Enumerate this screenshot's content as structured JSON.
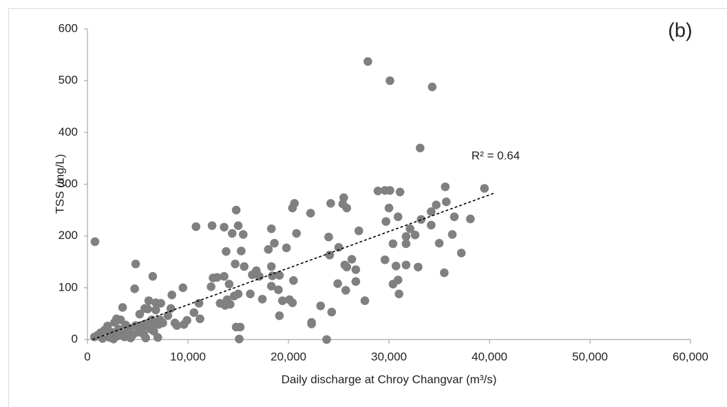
{
  "chart_data": {
    "type": "scatter",
    "title": "(b)",
    "xlabel": "Daily discharge at Chroy Changvar (m³/s)",
    "ylabel": "TSS (mg/L)",
    "annotation": "R² = 0.64",
    "color": "#808080",
    "xlim": [
      0,
      60000
    ],
    "ylim": [
      0,
      600
    ],
    "xticks": [
      0,
      {
        "value": 10000,
        "label": "10,000"
      },
      {
        "value": 20000,
        "label": "20,000"
      },
      {
        "value": 30000,
        "label": "30,000"
      },
      {
        "value": 40000,
        "label": "40,000"
      },
      {
        "value": 50000,
        "label": "50,000"
      },
      {
        "value": 60000,
        "label": "60,000"
      }
    ],
    "yticks": [
      0,
      100,
      200,
      300,
      400,
      500,
      600
    ],
    "grid": false,
    "trendline": {
      "x": [
        500,
        40500
      ],
      "y": [
        0,
        283
      ],
      "color": "#000000"
    },
    "x": [
      27900,
      30100,
      34300,
      33100,
      39500,
      35600,
      35700,
      34700,
      34200,
      33200,
      36500,
      38100,
      31100,
      29600,
      28900,
      30100,
      30000,
      29700,
      30900,
      32100,
      31700,
      32600,
      31700,
      30400,
      34200,
      36300,
      35000,
      37200,
      35500,
      29600,
      30700,
      31700,
      32900,
      30900,
      30400,
      31000,
      25500,
      25400,
      25800,
      24200,
      27000,
      24000,
      25000,
      24100,
      26300,
      25600,
      25800,
      26700,
      26700,
      24900,
      25700,
      27600,
      22200,
      20600,
      20400,
      20800,
      19800,
      18300,
      18600,
      18000,
      18300,
      19100,
      18400,
      18300,
      19000,
      19400,
      20100,
      20400,
      20500,
      23200,
      24300,
      22300,
      22300,
      23800,
      19100,
      15000,
      14800,
      14400,
      12400,
      13600,
      15500,
      12500,
      12900,
      12300,
      13800,
      15300,
      14700,
      15600,
      16800,
      16400,
      17100,
      13600,
      14100,
      14600,
      13900,
      14200,
      13700,
      13200,
      17400,
      16200,
      15000,
      10800,
      11100,
      11200,
      10600,
      14800,
      15200,
      15100,
      9500,
      9900,
      9600,
      8700,
      8900,
      8300,
      8000,
      7300,
      6800,
      6100,
      6500,
      4800,
      4700,
      6800,
      6000,
      5700,
      5200,
      3500,
      7000,
      5800,
      8400,
      7200,
      6700,
      6400,
      5800,
      5500,
      4800,
      4200,
      3800,
      3300,
      2900,
      2700,
      2000,
      1700,
      1300,
      1000,
      700,
      1500,
      2200,
      2600,
      3000,
      3500,
      4000,
      4500,
      5000,
      5300,
      6000,
      6300,
      7100,
      7500,
      2400,
      3100,
      3700,
      4300,
      5600,
      6600,
      750
    ],
    "values": [
      537,
      500,
      488,
      370,
      292,
      295,
      266,
      260,
      247,
      232,
      237,
      233,
      285,
      288,
      287,
      288,
      254,
      228,
      237,
      214,
      199,
      202,
      185,
      185,
      221,
      203,
      186,
      167,
      129,
      154,
      142,
      144,
      140,
      115,
      107,
      88,
      274,
      262,
      254,
      263,
      210,
      198,
      178,
      163,
      155,
      144,
      140,
      135,
      112,
      108,
      95,
      75,
      244,
      263,
      254,
      205,
      177,
      214,
      186,
      174,
      141,
      124,
      123,
      103,
      96,
      75,
      77,
      71,
      114,
      65,
      53,
      33,
      30,
      0,
      46,
      220,
      250,
      205,
      220,
      217,
      203,
      119,
      120,
      102,
      170,
      171,
      146,
      141,
      133,
      125,
      122,
      122,
      107,
      84,
      77,
      68,
      66,
      70,
      78,
      88,
      88,
      218,
      70,
      40,
      52,
      24,
      24,
      1,
      100,
      37,
      29,
      32,
      27,
      60,
      46,
      70,
      71,
      75,
      122,
      146,
      98,
      57,
      59,
      60,
      49,
      62,
      4,
      3,
      86,
      38,
      32,
      38,
      30,
      28,
      27,
      22,
      28,
      38,
      40,
      33,
      26,
      18,
      13,
      8,
      5,
      2,
      4,
      1,
      7,
      12,
      15,
      9,
      14,
      19,
      25,
      20,
      29,
      32,
      14,
      20,
      5,
      3,
      10,
      16,
      189
    ]
  }
}
